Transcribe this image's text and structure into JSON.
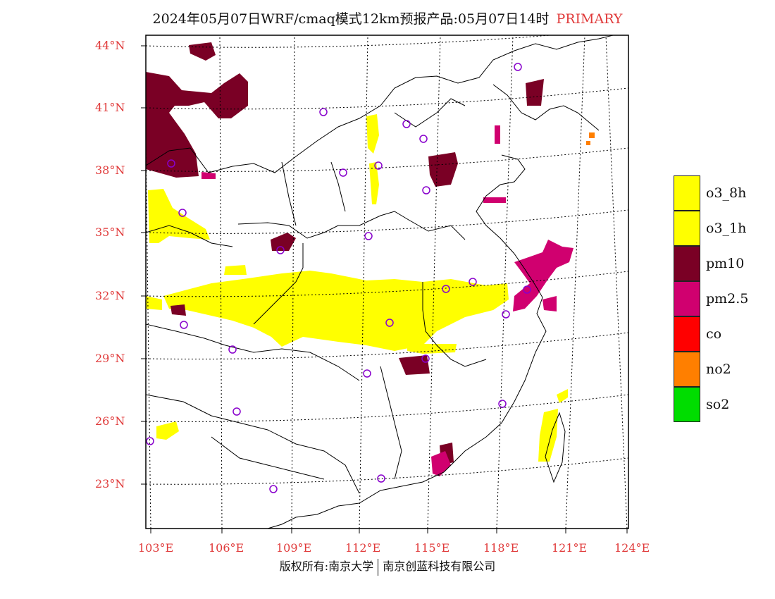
{
  "title": {
    "main": "2024年05月07日WRF/cmaq模式12km预报产品:05月07日14时",
    "tag": "PRIMARY",
    "tag_color": "#e03a3a"
  },
  "axes": {
    "lat_labels": [
      "44°N",
      "41°N",
      "38°N",
      "35°N",
      "32°N",
      "29°N",
      "26°N",
      "23°N"
    ],
    "lon_labels": [
      "103°E",
      "106°E",
      "109°E",
      "112°E",
      "115°E",
      "118°E",
      "121°E",
      "124°E"
    ]
  },
  "legend": [
    {
      "label": "o3_8h",
      "color": "#ffff00"
    },
    {
      "label": "o3_1h",
      "color": "#ffff00"
    },
    {
      "label": "pm10",
      "color": "#7a0025"
    },
    {
      "label": "pm2.5",
      "color": "#d0006f"
    },
    {
      "label": "co",
      "color": "#ff0000"
    },
    {
      "label": "no2",
      "color": "#ff7f00"
    },
    {
      "label": "so2",
      "color": "#00dd00"
    }
  ],
  "footer": {
    "left": "版权所有:南京大学",
    "right": "南京创蓝科技有限公司"
  }
}
